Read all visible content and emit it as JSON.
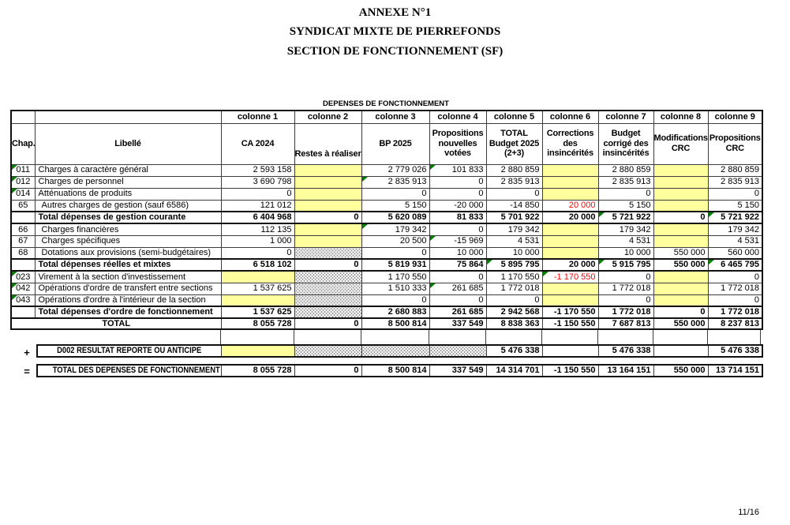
{
  "page": {
    "titles": [
      "ANNEXE N°1",
      "SYNDICAT MIXTE DE PIERREFONDS",
      "SECTION DE FONCTIONNEMENT (SF)"
    ],
    "table_title": "DEPENSES DE FONCTIONNEMENT",
    "page_number": "11/16",
    "operators": {
      "plus": "+",
      "equals": "="
    }
  },
  "colors": {
    "highlight_yellow": "#ffff9e",
    "alert_red": "#ff0000",
    "flag_green": "#008000"
  },
  "table": {
    "header_row1": [
      "",
      "",
      "colonne 1",
      "colonne 2",
      "colonne 3",
      "colonne 4",
      "colonne 5",
      "colonne 6",
      "colonne 7",
      "colonne 8",
      "colonne 9"
    ],
    "header_row2": [
      "Chap.",
      "Libellé",
      "CA 2024",
      "Restes à réaliser",
      "BP 2025",
      "Propositions nouvelles votées",
      "TOTAL Budget 2025 (2+3)",
      "Corrections des insincérités",
      "Budget corrigé des insincérités",
      "Modifications CRC",
      "Propositions CRC"
    ],
    "rows": [
      {
        "chap": "011",
        "chap_flag": true,
        "label": "Charges à caractère général",
        "style": "normal",
        "indent": false,
        "cells": [
          {
            "v": "2 593 158"
          },
          {
            "bg": "yellow"
          },
          {
            "v": "2 779 026"
          },
          {
            "v": "101 833",
            "flag": true
          },
          {
            "v": "2 880 859"
          },
          {
            "bg": "yellow"
          },
          {
            "v": "2 880 859"
          },
          {
            "bg": "yellow"
          },
          {
            "v": "2 880 859"
          }
        ]
      },
      {
        "chap": "012",
        "chap_flag": true,
        "label": "Charges de personnel",
        "style": "normal",
        "indent": false,
        "cells": [
          {
            "v": "3 690 798"
          },
          {
            "bg": "yellow"
          },
          {
            "v": "2 835 913",
            "flag": true
          },
          {
            "v": "0"
          },
          {
            "v": "2 835 913"
          },
          {
            "bg": "yellow"
          },
          {
            "v": "2 835 913"
          },
          {
            "bg": "yellow"
          },
          {
            "v": "2 835 913"
          }
        ]
      },
      {
        "chap": "014",
        "chap_flag": true,
        "label": "Atténuations de produits",
        "style": "normal",
        "indent": false,
        "cells": [
          {
            "v": "0"
          },
          {
            "bg": "yellow"
          },
          {
            "v": "0"
          },
          {
            "v": "0"
          },
          {
            "v": "0"
          },
          {
            "bg": "yellow"
          },
          {
            "v": "0"
          },
          {
            "bg": "yellow"
          },
          {
            "v": "0"
          }
        ]
      },
      {
        "chap": "65",
        "chap_flag": false,
        "label": "Autres charges de gestion (sauf 6586)",
        "style": "normal",
        "indent": true,
        "cells": [
          {
            "v": "121 012"
          },
          {
            "bg": "yellow"
          },
          {
            "v": "5 150"
          },
          {
            "v": "-20 000"
          },
          {
            "v": "-14 850"
          },
          {
            "v": "20 000",
            "color": "red"
          },
          {
            "v": "5 150"
          },
          {
            "bg": "yellow"
          },
          {
            "v": "5 150"
          }
        ]
      },
      {
        "chap": "",
        "chap_flag": false,
        "label": "Total dépenses de gestion courante",
        "style": "total",
        "indent": false,
        "cells": [
          {
            "v": "6 404 968"
          },
          {
            "v": "0"
          },
          {
            "v": "5 620 089"
          },
          {
            "v": "81 833"
          },
          {
            "v": "5 701 922"
          },
          {
            "v": "20 000"
          },
          {
            "v": "5 721 922",
            "flag": true
          },
          {
            "v": "0"
          },
          {
            "v": "5 721 922",
            "flag": true
          }
        ]
      },
      {
        "chap": "66",
        "chap_flag": false,
        "label": "Charges financières",
        "style": "normal",
        "indent": true,
        "cells": [
          {
            "v": "112 135"
          },
          {
            "bg": "yellow"
          },
          {
            "v": "179 342",
            "flag": true
          },
          {
            "v": "0"
          },
          {
            "v": "179 342"
          },
          {
            "bg": "yellow"
          },
          {
            "v": "179 342"
          },
          {
            "bg": "yellow"
          },
          {
            "v": "179 342"
          }
        ]
      },
      {
        "chap": "67",
        "chap_flag": false,
        "label": "Charges spécifiques",
        "style": "normal",
        "indent": true,
        "cells": [
          {
            "v": "1 000"
          },
          {
            "bg": "yellow"
          },
          {
            "v": "20 500"
          },
          {
            "v": "-15 969",
            "flag": true
          },
          {
            "v": "4 531"
          },
          {
            "bg": "yellow"
          },
          {
            "v": "4 531"
          },
          {
            "bg": "yellow"
          },
          {
            "v": "4 531"
          }
        ]
      },
      {
        "chap": "68",
        "chap_flag": false,
        "label": "Dotations aux provisions (semi-budgétaires)",
        "style": "normal",
        "indent": true,
        "cells": [
          {
            "v": "0"
          },
          {
            "bg": "hatch"
          },
          {
            "v": "0"
          },
          {
            "v": "10 000"
          },
          {
            "v": "10 000"
          },
          {
            "bg": "yellow"
          },
          {
            "v": "10 000"
          },
          {
            "v": "550 000"
          },
          {
            "v": "560 000"
          }
        ]
      },
      {
        "chap": "",
        "chap_flag": false,
        "label": "Total dépenses réelles et mixtes",
        "style": "total",
        "indent": false,
        "cells": [
          {
            "v": "6 518 102"
          },
          {
            "v": "0"
          },
          {
            "v": "5 819 931"
          },
          {
            "v": "75 864"
          },
          {
            "v": "5 895 795",
            "flag": true
          },
          {
            "v": "20 000"
          },
          {
            "v": "5 915 795",
            "flag": true
          },
          {
            "v": "550 000"
          },
          {
            "v": "6 465 795",
            "flag": true
          }
        ]
      },
      {
        "chap": "023",
        "chap_flag": true,
        "label": "Virement à la section d'investissement",
        "style": "normal",
        "indent": false,
        "cells": [
          {
            "bg": "yellow"
          },
          {
            "bg": "hatch"
          },
          {
            "v": "1 170 550"
          },
          {
            "v": "0"
          },
          {
            "v": "1 170 550"
          },
          {
            "v": "-1 170 550",
            "color": "red",
            "flag": true
          },
          {
            "v": "0"
          },
          {
            "bg": "yellow"
          },
          {
            "v": "0"
          }
        ]
      },
      {
        "chap": "042",
        "chap_flag": true,
        "label": "Opérations d'ordre de transfert entre sections",
        "style": "normal",
        "indent": false,
        "cells": [
          {
            "v": "1 537 625"
          },
          {
            "bg": "hatch"
          },
          {
            "v": "1 510 333"
          },
          {
            "v": "261 685",
            "flag": true
          },
          {
            "v": "1 772 018"
          },
          {
            "bg": "yellow"
          },
          {
            "v": "1 772 018"
          },
          {
            "bg": "yellow"
          },
          {
            "v": "1 772 018"
          }
        ]
      },
      {
        "chap": "043",
        "chap_flag": true,
        "label": "Opérations d'ordre à l'intérieur de la section",
        "style": "normal",
        "indent": false,
        "cells": [
          {
            "bg": "yellow"
          },
          {
            "bg": "hatch"
          },
          {
            "v": "0"
          },
          {
            "v": "0"
          },
          {
            "v": "0"
          },
          {
            "bg": "yellow"
          },
          {
            "v": "0"
          },
          {
            "bg": "yellow"
          },
          {
            "v": "0"
          }
        ]
      },
      {
        "chap": "",
        "chap_flag": false,
        "label": "Total dépenses d'ordre de fonctionnement",
        "style": "total",
        "indent": false,
        "cells": [
          {
            "v": "1 537 625"
          },
          {
            "bg": "hatch"
          },
          {
            "v": "2 680 883"
          },
          {
            "v": "261 685"
          },
          {
            "v": "2 942 568"
          },
          {
            "v": "-1 170 550"
          },
          {
            "v": "1 772 018"
          },
          {
            "v": "0"
          },
          {
            "v": "1 772 018"
          }
        ]
      },
      {
        "chap": "",
        "chap_flag": false,
        "label": "TOTAL",
        "style": "grand_total",
        "merge_label": true,
        "indent": false,
        "cells": [
          {
            "v": "8 055 728"
          },
          {
            "v": "0"
          },
          {
            "v": "8 500 814"
          },
          {
            "v": "337 549"
          },
          {
            "v": "8 838 363"
          },
          {
            "v": "-1 150 550"
          },
          {
            "v": "7 687 813"
          },
          {
            "v": "550 000"
          },
          {
            "v": "8 237 813"
          }
        ]
      }
    ],
    "summary_rows": [
      {
        "operator": "+",
        "label": "D002 RESULTAT REPORTE OU ANTICIPE",
        "cells": [
          {
            "bg": "yellow"
          },
          {
            "bg": "hatch"
          },
          {
            "bg": "hatch"
          },
          {
            "bg": "hatch"
          },
          {
            "v": "5 476 338"
          },
          {
            "v": ""
          },
          {
            "v": "5 476 338"
          },
          {
            "v": ""
          },
          {
            "v": "5 476 338"
          }
        ]
      },
      {
        "operator": "=",
        "label": "TOTAL DES DEPENSES DE FONCTIONNEMENT",
        "cells": [
          {
            "v": "8 055 728"
          },
          {
            "v": "0"
          },
          {
            "v": "8 500 814"
          },
          {
            "v": "337 549"
          },
          {
            "v": "14 314 701"
          },
          {
            "v": "-1 150 550"
          },
          {
            "v": "13 164 151"
          },
          {
            "v": "550 000"
          },
          {
            "v": "13 714 151"
          }
        ]
      }
    ]
  }
}
